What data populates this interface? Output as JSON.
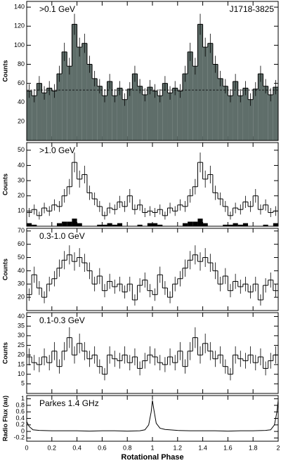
{
  "chart_data": [
    {
      "type": "histogram",
      "label": ">0.1 GeV",
      "annotation": "J1718-3825",
      "ylabel": "Counts",
      "fill": "#5f6e6a",
      "color": "#000000",
      "bins": [
        0,
        0.04,
        0.08,
        0.12,
        0.16,
        0.2,
        0.24,
        0.28,
        0.32,
        0.36,
        0.4,
        0.44,
        0.48,
        0.52,
        0.56,
        0.6,
        0.64,
        0.68,
        0.72,
        0.76,
        0.8,
        0.84,
        0.88,
        0.92,
        0.96,
        1,
        1.04,
        1.08,
        1.12,
        1.16,
        1.2,
        1.24,
        1.28,
        1.32,
        1.36,
        1.4,
        1.44,
        1.48,
        1.52,
        1.56,
        1.6,
        1.64,
        1.68,
        1.72,
        1.76,
        1.8,
        1.84,
        1.88,
        1.92,
        1.96,
        2
      ],
      "values": [
        52,
        47,
        60,
        50,
        55,
        52,
        70,
        93,
        78,
        122,
        98,
        102,
        80,
        65,
        57,
        47,
        62,
        47,
        55,
        43,
        54,
        70,
        57,
        48,
        56,
        52,
        47,
        60,
        50,
        55,
        52,
        70,
        93,
        78,
        122,
        98,
        102,
        80,
        65,
        57,
        47,
        62,
        47,
        55,
        43,
        54,
        70,
        57,
        48,
        56
      ],
      "errors": [
        7.2,
        6.9,
        7.7,
        7.1,
        7.4,
        7.2,
        8.4,
        9.6,
        8.8,
        11,
        9.9,
        10.1,
        8.9,
        8.1,
        7.5,
        6.9,
        7.9,
        6.9,
        7.4,
        6.6,
        7.3,
        8.4,
        7.5,
        6.9,
        7.5,
        7.2,
        6.9,
        7.7,
        7.1,
        7.4,
        7.2,
        8.4,
        9.6,
        8.8,
        11,
        9.9,
        10.1,
        8.9,
        8.1,
        7.5,
        6.9,
        7.9,
        6.9,
        7.4,
        6.6,
        7.3,
        8.4,
        7.5,
        6.9,
        7.5
      ],
      "reference_line": 53,
      "xlim": [
        0,
        2
      ],
      "ylim": [
        0,
        146
      ],
      "yticks": [
        20,
        40,
        60,
        80,
        100,
        120,
        140
      ]
    },
    {
      "type": "histogram",
      "label": ">1.0 GeV",
      "ylabel": "Counts",
      "color": "#000000",
      "background_color": "#000000",
      "bins": [
        0,
        0.04,
        0.08,
        0.12,
        0.16,
        0.2,
        0.24,
        0.28,
        0.32,
        0.36,
        0.4,
        0.44,
        0.48,
        0.52,
        0.56,
        0.6,
        0.64,
        0.68,
        0.72,
        0.76,
        0.8,
        0.84,
        0.88,
        0.92,
        0.96,
        1,
        1.04,
        1.08,
        1.12,
        1.16,
        1.2,
        1.24,
        1.28,
        1.32,
        1.36,
        1.4,
        1.44,
        1.48,
        1.52,
        1.56,
        1.6,
        1.64,
        1.68,
        1.72,
        1.76,
        1.8,
        1.84,
        1.88,
        1.92,
        1.96,
        2
      ],
      "values": [
        9,
        11,
        7,
        12,
        10,
        14,
        13,
        20,
        26,
        42,
        31,
        34,
        22,
        18,
        13,
        7,
        12,
        11,
        16,
        13,
        20,
        11,
        14,
        9,
        10,
        9,
        11,
        7,
        12,
        10,
        14,
        13,
        20,
        26,
        42,
        31,
        34,
        22,
        18,
        13,
        7,
        12,
        11,
        16,
        13,
        20,
        11,
        14,
        9,
        10
      ],
      "errors": [
        3,
        3.3,
        2.6,
        3.5,
        3.2,
        3.7,
        3.6,
        4.5,
        5.1,
        6.5,
        5.6,
        5.8,
        4.7,
        4.2,
        3.6,
        2.6,
        3.5,
        3.3,
        4,
        3.6,
        4.5,
        3.3,
        3.7,
        3,
        3.2,
        3,
        3.3,
        2.6,
        3.5,
        3.2,
        3.7,
        3.6,
        4.5,
        5.1,
        6.5,
        5.6,
        5.8,
        4.7,
        4.2,
        3.6,
        2.6,
        3.5,
        3.3,
        4,
        3.6,
        4.5,
        3.3,
        3.7,
        3,
        3.2
      ],
      "background": [
        2,
        1,
        0,
        0,
        0,
        0,
        2,
        3,
        3,
        5,
        2,
        0,
        0,
        0,
        1,
        1,
        2,
        1,
        2,
        0,
        0,
        0,
        1,
        0,
        2,
        2,
        1,
        0,
        0,
        0,
        0,
        2,
        3,
        3,
        5,
        2,
        0,
        0,
        0,
        1,
        1,
        2,
        1,
        2,
        0,
        0,
        0,
        1,
        0,
        2
      ],
      "xlim": [
        0,
        2
      ],
      "ylim": [
        0,
        55
      ],
      "yticks": [
        10,
        20,
        30,
        40,
        50
      ]
    },
    {
      "type": "histogram",
      "label": "0.3-1.0 GeV",
      "ylabel": "Counts",
      "color": "#000000",
      "bins": [
        0,
        0.04,
        0.08,
        0.12,
        0.16,
        0.2,
        0.24,
        0.28,
        0.32,
        0.36,
        0.4,
        0.44,
        0.48,
        0.52,
        0.56,
        0.6,
        0.64,
        0.68,
        0.72,
        0.76,
        0.8,
        0.84,
        0.88,
        0.92,
        0.96,
        1,
        1.04,
        1.08,
        1.12,
        1.16,
        1.2,
        1.24,
        1.28,
        1.32,
        1.36,
        1.4,
        1.44,
        1.48,
        1.52,
        1.56,
        1.6,
        1.64,
        1.68,
        1.72,
        1.76,
        1.8,
        1.84,
        1.88,
        1.92,
        1.96,
        2
      ],
      "values": [
        22,
        37,
        27,
        20,
        30,
        34,
        42,
        48,
        52,
        47,
        50,
        46,
        40,
        30,
        36,
        25,
        32,
        28,
        30,
        24,
        30,
        18,
        29,
        33,
        25,
        22,
        37,
        27,
        20,
        30,
        34,
        42,
        48,
        52,
        47,
        50,
        46,
        40,
        30,
        36,
        25,
        32,
        28,
        30,
        24,
        30,
        18,
        29,
        33,
        25
      ],
      "errors": [
        4.7,
        6.1,
        5.2,
        4.5,
        5.5,
        5.8,
        6.5,
        6.9,
        7.2,
        6.9,
        7.1,
        6.8,
        6.3,
        5.5,
        6,
        5,
        5.7,
        5.3,
        5.5,
        4.9,
        5.5,
        4.2,
        5.4,
        5.7,
        5,
        4.7,
        6.1,
        5.2,
        4.5,
        5.5,
        5.8,
        6.5,
        6.9,
        7.2,
        6.9,
        7.1,
        6.8,
        6.3,
        5.5,
        6,
        5,
        5.7,
        5.3,
        5.5,
        4.9,
        5.5,
        4.2,
        5.4,
        5.7,
        5
      ],
      "xlim": [
        0,
        2
      ],
      "ylim": [
        10,
        72
      ],
      "yticks": [
        20,
        30,
        40,
        50,
        60,
        70
      ]
    },
    {
      "type": "histogram",
      "label": "0.1-0.3 GeV",
      "ylabel": "Counts",
      "color": "#000000",
      "bins": [
        0,
        0.04,
        0.08,
        0.12,
        0.16,
        0.2,
        0.24,
        0.28,
        0.32,
        0.36,
        0.4,
        0.44,
        0.48,
        0.52,
        0.56,
        0.6,
        0.64,
        0.68,
        0.72,
        0.76,
        0.8,
        0.84,
        0.88,
        0.92,
        0.96,
        1,
        1.04,
        1.08,
        1.12,
        1.16,
        1.2,
        1.24,
        1.28,
        1.32,
        1.36,
        1.4,
        1.44,
        1.48,
        1.52,
        1.56,
        1.6,
        1.64,
        1.68,
        1.72,
        1.76,
        1.8,
        1.84,
        1.88,
        1.92,
        1.96,
        2
      ],
      "values": [
        19,
        16,
        15,
        19,
        16,
        22,
        14,
        22,
        29,
        20,
        26,
        22,
        18,
        20,
        14,
        10,
        20,
        18,
        17,
        20,
        16,
        19,
        13,
        17,
        20,
        19,
        16,
        15,
        19,
        16,
        22,
        14,
        22,
        29,
        20,
        26,
        22,
        18,
        20,
        14,
        10,
        20,
        18,
        17,
        20,
        16,
        19,
        13,
        17,
        20
      ],
      "errors": [
        4.4,
        4,
        3.9,
        4.4,
        4,
        4.7,
        3.7,
        4.7,
        5.4,
        4.5,
        5.1,
        4.7,
        4.2,
        4.5,
        3.7,
        3.2,
        4.5,
        4.2,
        4.1,
        4.5,
        4,
        4.4,
        3.6,
        4.1,
        4.5,
        4.4,
        4,
        3.9,
        4.4,
        4,
        4.7,
        3.7,
        4.7,
        5.4,
        4.5,
        5.1,
        4.7,
        4.2,
        4.5,
        3.7,
        3.2,
        4.5,
        4.2,
        4.1,
        4.5,
        4,
        4.4,
        3.6,
        4.1,
        4.5
      ],
      "xlim": [
        0,
        2
      ],
      "ylim": [
        0,
        42
      ],
      "yticks": [
        5,
        10,
        15,
        20,
        25,
        30,
        35,
        40
      ]
    },
    {
      "type": "line",
      "label": "Parkes 1.4 GHz",
      "ylabel": "Radio Flux (au)",
      "xlabel": "Rotational Phase",
      "color": "#000000",
      "x": [
        0,
        0.02,
        0.05,
        0.1,
        0.2,
        0.3,
        0.4,
        0.5,
        0.6,
        0.7,
        0.8,
        0.9,
        0.94,
        0.97,
        0.99,
        1,
        1.01,
        1.03,
        1.06,
        1.1,
        1.2,
        1.3,
        1.4,
        1.5,
        1.6,
        1.7,
        1.8,
        1.9,
        1.94,
        1.97,
        1.99,
        2
      ],
      "values": [
        0.3,
        0.15,
        0.05,
        0.03,
        0.02,
        0.02,
        0.02,
        0.01,
        0.02,
        0.02,
        0.01,
        0.02,
        0.05,
        0.2,
        0.6,
        0.95,
        0.7,
        0.25,
        0.1,
        0.06,
        0.03,
        0.02,
        0.02,
        0.02,
        0.01,
        0.02,
        0.02,
        0.03,
        0.05,
        0.2,
        0.6,
        0.95
      ],
      "xlim": [
        0,
        2
      ],
      "ylim": [
        -0.3,
        1.1
      ],
      "yticks": [
        -0.2,
        0,
        0.2,
        0.4,
        0.6,
        0.8,
        1
      ],
      "xticks": [
        0,
        0.2,
        0.4,
        0.6,
        0.8,
        1,
        1.2,
        1.4,
        1.6,
        1.8,
        2
      ]
    }
  ]
}
